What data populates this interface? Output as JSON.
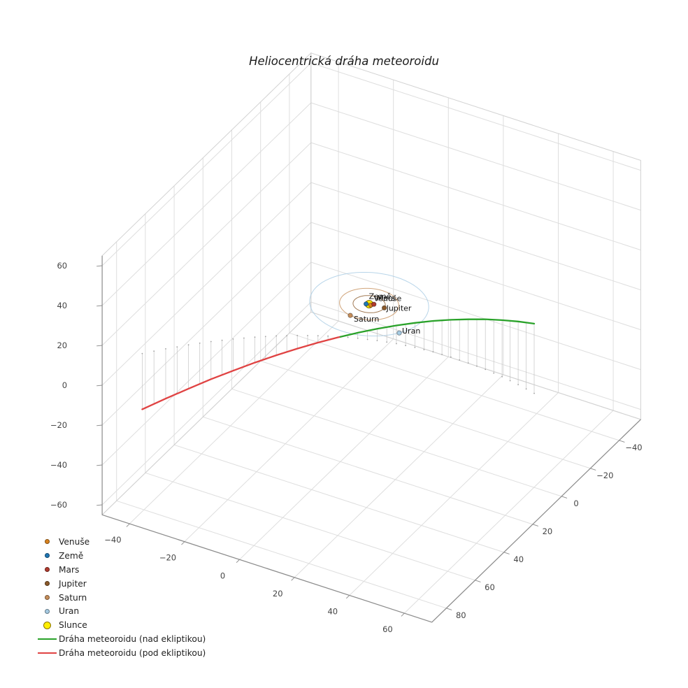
{
  "figure": {
    "background": "#ffffff"
  },
  "chart_data": {
    "type": "scatter",
    "projection": "3d",
    "title": "Heliocentrická dráha meteoroidu",
    "grid": true,
    "legend_location": "lower-left",
    "axes": {
      "x": {
        "ticks": [
          -40,
          -20,
          0,
          20,
          40,
          60
        ],
        "range": [
          -50,
          70
        ]
      },
      "y": {
        "ticks": [
          -40,
          -20,
          0,
          20,
          40,
          60,
          80
        ],
        "range": [
          -55,
          90
        ]
      },
      "z": {
        "ticks": [
          -60,
          -40,
          -20,
          0,
          20,
          40,
          60
        ],
        "range": [
          -65,
          65
        ]
      }
    },
    "sun": {
      "name": "Slunce",
      "color": "#ffef00",
      "edge_color": "#8b7500",
      "pos": [
        0,
        0,
        0
      ]
    },
    "planets": [
      {
        "name": "Venuše",
        "color": "#d9831f",
        "orbit_radius_au": 0.72,
        "pos": [
          0.7,
          0.19,
          0
        ]
      },
      {
        "name": "Země",
        "color": "#1f77b4",
        "orbit_radius_au": 1.0,
        "pos": [
          -0.91,
          0.42,
          0
        ]
      },
      {
        "name": "Mars",
        "color": "#b03a2e",
        "orbit_radius_au": 1.52,
        "pos": [
          1.32,
          -0.76,
          0
        ]
      },
      {
        "name": "Jupiter",
        "color": "#8b5a2b",
        "orbit_radius_au": 5.2,
        "pos": [
          5.16,
          -0.63,
          0
        ]
      },
      {
        "name": "Saturn",
        "color": "#c68e5a",
        "orbit_radius_au": 9.54,
        "pos": [
          -1.98,
          9.33,
          0
        ]
      },
      {
        "name": "Uran",
        "color": "#a6cbe3",
        "orbit_radius_au": 19.19,
        "pos": [
          16.27,
          10.17,
          0
        ]
      }
    ],
    "trajectory": {
      "above": {
        "label": "Dráha meteoroidu (nad ekliptikou)",
        "color": "#2aa22a"
      },
      "below": {
        "label": "Dráha meteoroidu (pod ekliptikou)",
        "color": "#e04343"
      },
      "stem_color": "#bfbfbf",
      "points": [
        [
          -48.0,
          66.0,
          -28.0
        ],
        [
          -42.9,
          59.4,
          -25.0
        ],
        [
          -37.8,
          53.3,
          -22.0
        ],
        [
          -32.6,
          47.6,
          -18.9
        ],
        [
          -27.3,
          42.4,
          -15.9
        ],
        [
          -21.9,
          37.6,
          -12.8
        ],
        [
          -16.4,
          33.2,
          -9.7
        ],
        [
          -10.8,
          29.3,
          -6.6
        ],
        [
          -5.1,
          25.8,
          -3.5
        ],
        [
          0.6,
          22.8,
          -0.4
        ],
        [
          6.5,
          20.3,
          2.8
        ],
        [
          12.4,
          18.1,
          5.9
        ],
        [
          18.5,
          16.4,
          9.1
        ],
        [
          24.6,
          15.2,
          12.3
        ],
        [
          30.8,
          14.4,
          15.5
        ],
        [
          37.1,
          14.1,
          18.7
        ],
        [
          43.5,
          14.2,
          21.9
        ],
        [
          50.0,
          14.7,
          25.2
        ],
        [
          56.6,
          15.7,
          28.4
        ],
        [
          63.2,
          17.1,
          31.7
        ],
        [
          70.0,
          19.0,
          35.0
        ]
      ]
    }
  },
  "legend": {
    "items": [
      {
        "label": "Venuše",
        "marker": "dot",
        "color": "#d9831f",
        "size": 7
      },
      {
        "label": "Země",
        "marker": "dot",
        "color": "#1f77b4",
        "size": 7
      },
      {
        "label": "Mars",
        "marker": "dot",
        "color": "#b03a2e",
        "size": 7
      },
      {
        "label": "Jupiter",
        "marker": "dot",
        "color": "#8b5a2b",
        "size": 7
      },
      {
        "label": "Saturn",
        "marker": "dot",
        "color": "#c68e5a",
        "size": 7
      },
      {
        "label": "Uran",
        "marker": "dot",
        "color": "#a6cbe3",
        "size": 7
      },
      {
        "label": "Slunce",
        "marker": "dot",
        "color": "#ffef00",
        "edge_color": "#8b7500",
        "size": 11
      },
      {
        "label": "Dráha meteoroidu (nad ekliptikou)",
        "marker": "line",
        "color": "#2aa22a"
      },
      {
        "label": "Dráha meteoroidu (pod ekliptikou)",
        "marker": "line",
        "color": "#e04343"
      }
    ]
  }
}
